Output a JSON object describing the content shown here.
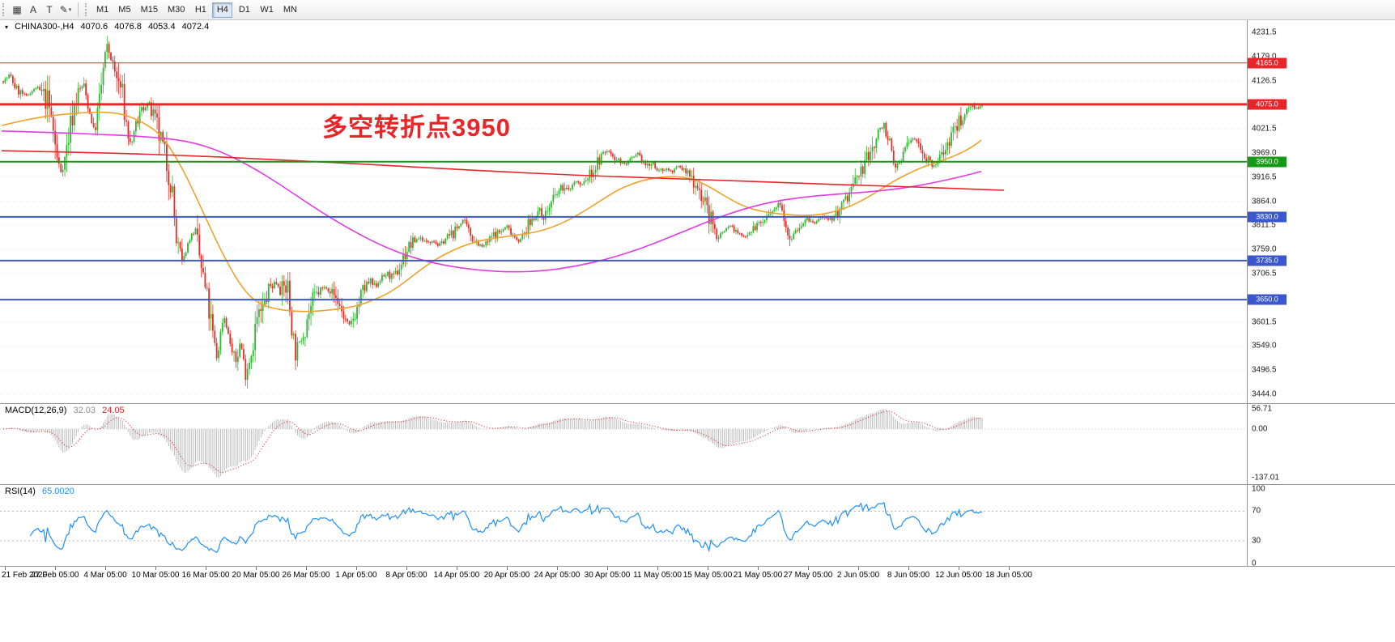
{
  "toolbar": {
    "tools": [
      {
        "name": "chart-grid-icon",
        "glyph": "▦",
        "dropdown": false
      },
      {
        "name": "text-tool-icon",
        "glyph": "A",
        "dropdown": false
      },
      {
        "name": "text-label-tool-icon",
        "glyph": "T",
        "dropdown": false
      },
      {
        "name": "draw-tool-icon",
        "glyph": "✎",
        "dropdown": true
      }
    ],
    "dropdown_caret": "▾",
    "timeframes": [
      "M1",
      "M5",
      "M15",
      "M30",
      "H1",
      "H4",
      "D1",
      "W1",
      "MN"
    ],
    "active_timeframe": "H4"
  },
  "main_chart": {
    "collapse_marker": "▾",
    "symbol_period": "CHINA300-,H4",
    "open": "4070.6",
    "high": "4076.8",
    "low": "4053.4",
    "close": "4072.4",
    "annotation": {
      "text": "多空转折点3950",
      "color": "#e8262a"
    },
    "levels": [
      {
        "label": "4165.0",
        "price": 4165.0,
        "color": "#e8262a",
        "width": 1
      },
      {
        "label": "4075.0",
        "price": 4075.0,
        "color": "#e8262a",
        "width": 3
      },
      {
        "label": "3950.0",
        "price": 3950.0,
        "color": "#169a16",
        "width": 2
      },
      {
        "label": "3830.0",
        "price": 3830.0,
        "color": "#3a57cf",
        "width": 2
      },
      {
        "label": "3735.0",
        "price": 3735.0,
        "color": "#3a57cf",
        "width": 2
      },
      {
        "label": "3650.0",
        "price": 3650.0,
        "color": "#3a57cf",
        "width": 2
      }
    ],
    "price_ticks": [
      "4231.5",
      "4179.0",
      "4126.5",
      "4074.0",
      "4021.5",
      "3969.0",
      "3916.5",
      "3864.0",
      "3811.5",
      "3759.0",
      "3706.5",
      "3654.0",
      "3601.5",
      "3549.0",
      "3496.5",
      "3444.0"
    ],
    "axis_range": {
      "top": 4258.0,
      "bottom": 3424.7
    }
  },
  "macd_panel": {
    "label": "MACD(12,26,9)",
    "value_main": "32.03",
    "value_signal": "24.05",
    "value_main_color": "#8e8e8e",
    "value_signal_color": "#e8262a",
    "axis": [
      "56.71",
      "0.00",
      "-137.01"
    ],
    "axis_max": 56.71,
    "axis_min": -137.01,
    "histogram_color": "#b4b4b4",
    "signal_color": "#e8262a"
  },
  "rsi_panel": {
    "label": "RSI(14)",
    "value": "65.0020",
    "value_color": "#1e90ff",
    "axis_top": "100",
    "axis_upper": "70",
    "axis_lower": "30",
    "axis_bottom": "0",
    "upper_level": 70,
    "lower_level": 30,
    "line_color": "#1e90ff",
    "level_color": "#b8b8b8"
  },
  "time_axis": [
    "21 Feb 2020",
    "27 Feb 05:00",
    "4 Mar 05:00",
    "10 Mar 05:00",
    "16 Mar 05:00",
    "20 Mar 05:00",
    "26 Mar 05:00",
    "1 Apr 05:00",
    "8 Apr 05:00",
    "14 Apr 05:00",
    "20 Apr 05:00",
    "24 Apr 05:00",
    "30 Apr 05:00",
    "11 May 05:00",
    "15 May 05:00",
    "21 May 05:00",
    "27 May 05:00",
    "2 Jun 05:00",
    "8 Jun 05:00",
    "12 Jun 05:00",
    "18 Jun 05:00"
  ],
  "chart_data": {
    "type": "candlestick",
    "symbol": "CHINA300-",
    "timeframe": "H4",
    "bars": 510,
    "bull_color": "#2db82d",
    "bear_color": "#ea2a24",
    "grid_color": "#e3e3e3",
    "last_close": 4072.4,
    "close_path": [
      [
        4,
        4125
      ],
      [
        12,
        4138
      ],
      [
        20,
        4108
      ],
      [
        32,
        4092
      ],
      [
        45,
        4112
      ],
      [
        58,
        4085
      ],
      [
        64,
        4040
      ],
      [
        70,
        3960
      ],
      [
        75,
        3928
      ],
      [
        80,
        3955
      ],
      [
        88,
        4040
      ],
      [
        95,
        4098
      ],
      [
        103,
        4118
      ],
      [
        110,
        4062
      ],
      [
        116,
        4014
      ],
      [
        122,
        4068
      ],
      [
        128,
        4158
      ],
      [
        133,
        4200
      ],
      [
        138,
        4166
      ],
      [
        144,
        4130
      ],
      [
        150,
        4108
      ],
      [
        156,
        4032
      ],
      [
        161,
        3984
      ],
      [
        168,
        4030
      ],
      [
        175,
        4062
      ],
      [
        183,
        4076
      ],
      [
        190,
        4042
      ],
      [
        198,
        3998
      ],
      [
        205,
        3952
      ],
      [
        212,
        3900
      ],
      [
        218,
        3772
      ],
      [
        225,
        3724
      ],
      [
        232,
        3772
      ],
      [
        240,
        3804
      ],
      [
        248,
        3724
      ],
      [
        255,
        3656
      ],
      [
        262,
        3582
      ],
      [
        268,
        3522
      ],
      [
        276,
        3620
      ],
      [
        283,
        3566
      ],
      [
        290,
        3506
      ],
      [
        297,
        3560
      ],
      [
        303,
        3492
      ],
      [
        310,
        3530
      ],
      [
        317,
        3606
      ],
      [
        325,
        3626
      ],
      [
        333,
        3678
      ],
      [
        341,
        3688
      ],
      [
        348,
        3668
      ],
      [
        355,
        3684
      ],
      [
        359,
        3610
      ],
      [
        365,
        3534
      ],
      [
        372,
        3566
      ],
      [
        380,
        3616
      ],
      [
        388,
        3652
      ],
      [
        395,
        3670
      ],
      [
        403,
        3678
      ],
      [
        410,
        3666
      ],
      [
        418,
        3645
      ],
      [
        425,
        3610
      ],
      [
        432,
        3592
      ],
      [
        440,
        3626
      ],
      [
        448,
        3668
      ],
      [
        456,
        3688
      ],
      [
        463,
        3678
      ],
      [
        470,
        3696
      ],
      [
        478,
        3706
      ],
      [
        486,
        3696
      ],
      [
        494,
        3722
      ],
      [
        502,
        3757
      ],
      [
        510,
        3775
      ],
      [
        518,
        3786
      ],
      [
        526,
        3775
      ],
      [
        534,
        3780
      ],
      [
        542,
        3767
      ],
      [
        550,
        3782
      ],
      [
        558,
        3792
      ],
      [
        566,
        3808
      ],
      [
        572,
        3824
      ],
      [
        580,
        3794
      ],
      [
        588,
        3778
      ],
      [
        595,
        3764
      ],
      [
        602,
        3775
      ],
      [
        610,
        3792
      ],
      [
        618,
        3797
      ],
      [
        626,
        3810
      ],
      [
        634,
        3790
      ],
      [
        642,
        3776
      ],
      [
        650,
        3802
      ],
      [
        658,
        3828
      ],
      [
        665,
        3842
      ],
      [
        672,
        3832
      ],
      [
        680,
        3856
      ],
      [
        688,
        3880
      ],
      [
        695,
        3896
      ],
      [
        702,
        3886
      ],
      [
        710,
        3908
      ],
      [
        718,
        3898
      ],
      [
        726,
        3916
      ],
      [
        734,
        3934
      ],
      [
        742,
        3960
      ],
      [
        750,
        3975
      ],
      [
        758,
        3962
      ],
      [
        765,
        3952
      ],
      [
        772,
        3944
      ],
      [
        780,
        3956
      ],
      [
        788,
        3966
      ],
      [
        798,
        3940
      ],
      [
        806,
        3946
      ],
      [
        814,
        3928
      ],
      [
        822,
        3936
      ],
      [
        830,
        3928
      ],
      [
        838,
        3940
      ],
      [
        846,
        3930
      ],
      [
        854,
        3916
      ],
      [
        862,
        3898
      ],
      [
        870,
        3860
      ],
      [
        878,
        3822
      ],
      [
        886,
        3786
      ],
      [
        894,
        3800
      ],
      [
        902,
        3812
      ],
      [
        910,
        3796
      ],
      [
        918,
        3786
      ],
      [
        926,
        3800
      ],
      [
        934,
        3810
      ],
      [
        942,
        3820
      ],
      [
        950,
        3832
      ],
      [
        958,
        3846
      ],
      [
        964,
        3868
      ],
      [
        970,
        3820
      ],
      [
        975,
        3786
      ],
      [
        982,
        3800
      ],
      [
        990,
        3815
      ],
      [
        998,
        3825
      ],
      [
        1006,
        3815
      ],
      [
        1014,
        3830
      ],
      [
        1022,
        3820
      ],
      [
        1030,
        3832
      ],
      [
        1038,
        3846
      ],
      [
        1046,
        3872
      ],
      [
        1054,
        3900
      ],
      [
        1062,
        3926
      ],
      [
        1070,
        3950
      ],
      [
        1078,
        3982
      ],
      [
        1086,
        4018
      ],
      [
        1092,
        4035
      ],
      [
        1098,
        3992
      ],
      [
        1105,
        3932
      ],
      [
        1112,
        3956
      ],
      [
        1120,
        3985
      ],
      [
        1128,
        4002
      ],
      [
        1136,
        3986
      ],
      [
        1144,
        3962
      ],
      [
        1152,
        3936
      ],
      [
        1160,
        3956
      ],
      [
        1168,
        3985
      ],
      [
        1176,
        4010
      ],
      [
        1184,
        4036
      ],
      [
        1192,
        4058
      ],
      [
        1200,
        4076
      ],
      [
        1207,
        4066
      ],
      [
        1213,
        4072
      ]
    ],
    "moving_averages": [
      {
        "name": "fast-ma",
        "color": "#f0a228",
        "points": [
          [
            2,
            4029
          ],
          [
            40,
            4045
          ],
          [
            80,
            4054
          ],
          [
            120,
            4059
          ],
          [
            150,
            4055
          ],
          [
            175,
            4038
          ],
          [
            200,
            4008
          ],
          [
            225,
            3938
          ],
          [
            250,
            3844
          ],
          [
            275,
            3748
          ],
          [
            300,
            3672
          ],
          [
            320,
            3640
          ],
          [
            340,
            3630
          ],
          [
            360,
            3625
          ],
          [
            380,
            3624
          ],
          [
            400,
            3626
          ],
          [
            420,
            3630
          ],
          [
            440,
            3636
          ],
          [
            460,
            3648
          ],
          [
            480,
            3664
          ],
          [
            500,
            3688
          ],
          [
            520,
            3716
          ],
          [
            540,
            3740
          ],
          [
            560,
            3758
          ],
          [
            580,
            3772
          ],
          [
            600,
            3781
          ],
          [
            620,
            3786
          ],
          [
            640,
            3791
          ],
          [
            660,
            3796
          ],
          [
            680,
            3806
          ],
          [
            700,
            3821
          ],
          [
            720,
            3841
          ],
          [
            740,
            3863
          ],
          [
            760,
            3886
          ],
          [
            780,
            3902
          ],
          [
            800,
            3912
          ],
          [
            820,
            3918
          ],
          [
            840,
            3918
          ],
          [
            860,
            3910
          ],
          [
            880,
            3892
          ],
          [
            900,
            3870
          ],
          [
            920,
            3852
          ],
          [
            940,
            3842
          ],
          [
            960,
            3837
          ],
          [
            980,
            3834
          ],
          [
            1000,
            3833
          ],
          [
            1020,
            3837
          ],
          [
            1040,
            3846
          ],
          [
            1060,
            3861
          ],
          [
            1080,
            3881
          ],
          [
            1100,
            3904
          ],
          [
            1120,
            3923
          ],
          [
            1140,
            3939
          ],
          [
            1160,
            3951
          ],
          [
            1180,
            3963
          ],
          [
            1200,
            3981
          ],
          [
            1212,
            3997
          ]
        ]
      },
      {
        "name": "medium-ma",
        "color": "#e23be2",
        "points": [
          [
            2,
            4017
          ],
          [
            60,
            4014
          ],
          [
            120,
            4010
          ],
          [
            180,
            4005
          ],
          [
            230,
            3996
          ],
          [
            270,
            3975
          ],
          [
            310,
            3940
          ],
          [
            350,
            3896
          ],
          [
            390,
            3848
          ],
          [
            430,
            3805
          ],
          [
            470,
            3768
          ],
          [
            510,
            3741
          ],
          [
            550,
            3724
          ],
          [
            590,
            3714
          ],
          [
            630,
            3710
          ],
          [
            670,
            3712
          ],
          [
            710,
            3722
          ],
          [
            750,
            3738
          ],
          [
            790,
            3760
          ],
          [
            830,
            3788
          ],
          [
            870,
            3817
          ],
          [
            910,
            3843
          ],
          [
            950,
            3862
          ],
          [
            990,
            3873
          ],
          [
            1030,
            3879
          ],
          [
            1070,
            3884
          ],
          [
            1110,
            3891
          ],
          [
            1150,
            3903
          ],
          [
            1190,
            3919
          ],
          [
            1212,
            3929
          ]
        ]
      },
      {
        "name": "slow-ma",
        "color": "#e8262a",
        "points": [
          [
            2,
            3974
          ],
          [
            120,
            3970
          ],
          [
            240,
            3963
          ],
          [
            360,
            3953
          ],
          [
            480,
            3942
          ],
          [
            600,
            3930
          ],
          [
            720,
            3920
          ],
          [
            840,
            3913
          ],
          [
            960,
            3905
          ],
          [
            1080,
            3898
          ],
          [
            1180,
            3892
          ],
          [
            1240,
            3888
          ]
        ]
      }
    ]
  }
}
